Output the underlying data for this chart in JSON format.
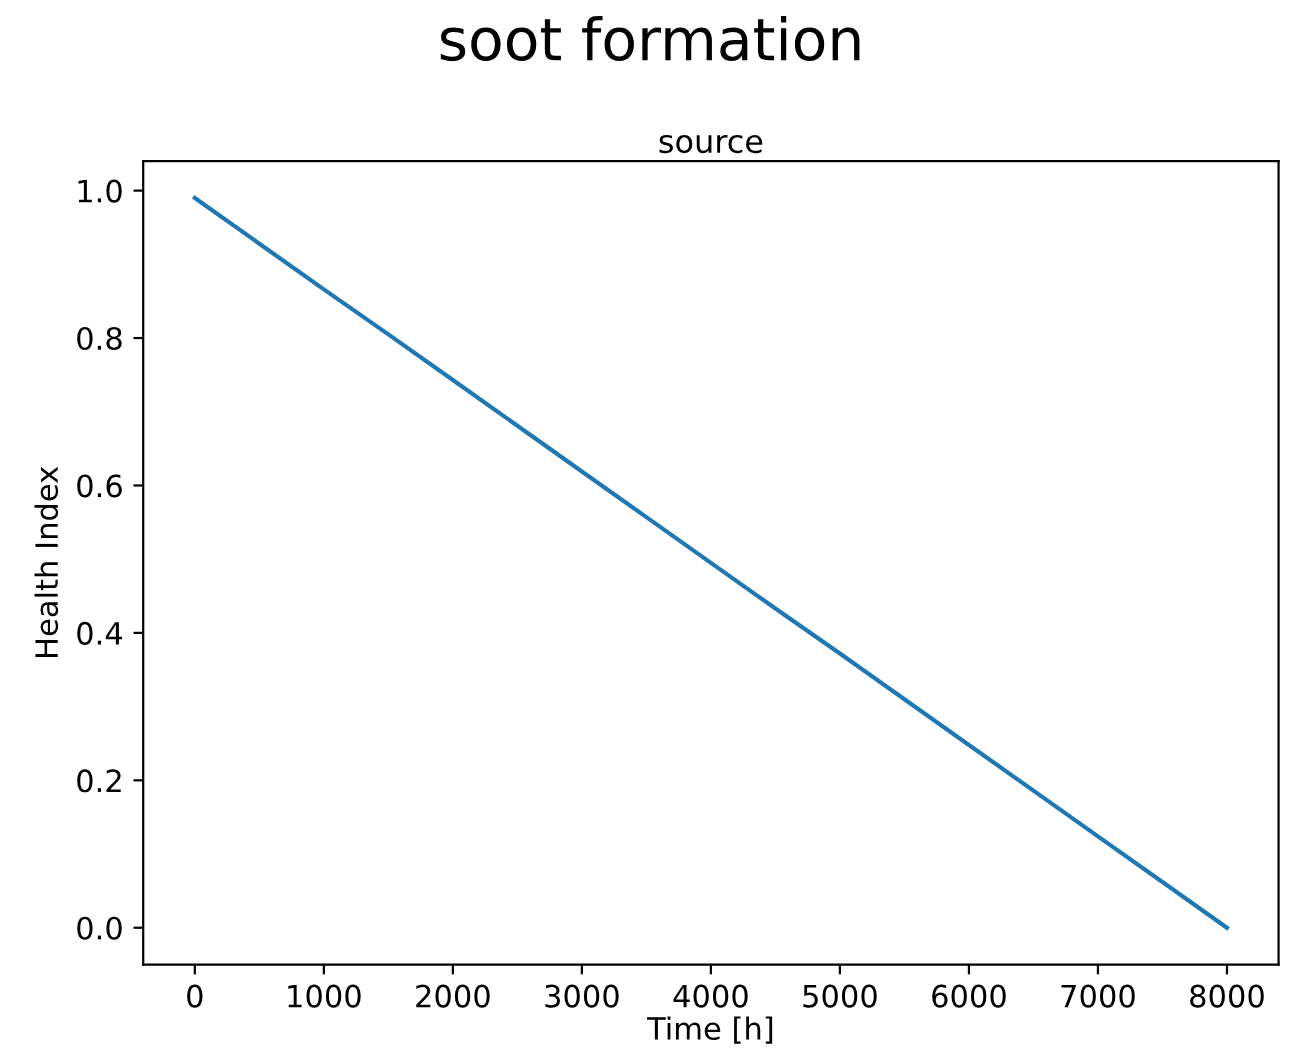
{
  "chart_data": {
    "type": "line",
    "title": "soot formation",
    "subtitle": "source",
    "xlabel": "Time [h]",
    "ylabel": "Health Index",
    "x": [
      0,
      500,
      1000,
      1500,
      2000,
      2500,
      3000,
      3500,
      4000,
      4500,
      5000,
      5500,
      6000,
      6500,
      7000,
      7500,
      8000
    ],
    "series": [
      {
        "color": "#1f77b4",
        "values": [
          0.99,
          0.928,
          0.866,
          0.805,
          0.743,
          0.681,
          0.619,
          0.557,
          0.495,
          0.433,
          0.372,
          0.31,
          0.248,
          0.186,
          0.124,
          0.062,
          0.0
        ]
      }
    ],
    "xlim": [
      -400,
      8400
    ],
    "ylim": [
      -0.05,
      1.04
    ],
    "xticks": [
      0,
      1000,
      2000,
      3000,
      4000,
      5000,
      6000,
      7000,
      8000
    ],
    "yticks": [
      {
        "value": 0,
        "label": "0.0"
      },
      {
        "value": 0.2,
        "label": "0.2"
      },
      {
        "value": 0.4,
        "label": "0.4"
      },
      {
        "value": 0.6,
        "label": "0.6"
      },
      {
        "value": 0.8,
        "label": "0.8"
      },
      {
        "value": 1.0,
        "label": "1.0"
      }
    ],
    "grid": false
  }
}
